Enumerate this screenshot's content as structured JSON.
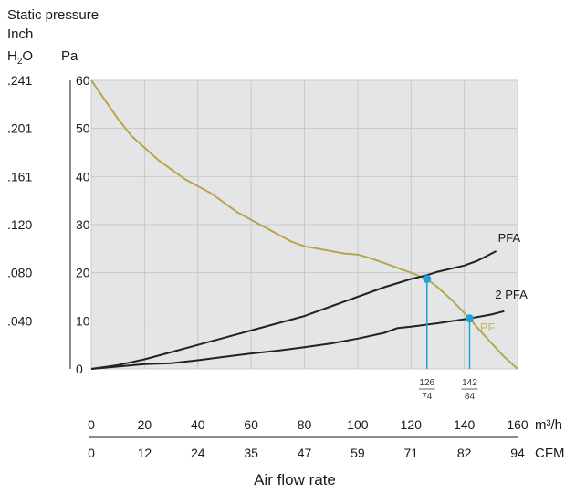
{
  "chart_data": {
    "type": "line",
    "title": "",
    "ylabel_main": "Static pressure",
    "ylabel_unit_inch_top": "Inch",
    "ylabel_unit_inch_bottom": "H",
    "ylabel_unit_inch_sub": "2",
    "ylabel_unit_inch_tail": "O",
    "ylabel_unit_pa": "Pa",
    "xlabel": "Air flow rate",
    "x_unit_primary": "m³/h",
    "x_unit_secondary": "CFM",
    "xlim": [
      0,
      160
    ],
    "ylim": [
      0,
      60
    ],
    "grid": true,
    "y_ticks_pa": [
      "0",
      "10",
      "20",
      "30",
      "40",
      "50",
      "60"
    ],
    "y_ticks_inch": [
      {
        "label": ".040",
        "pa": 10
      },
      {
        "label": ".080",
        "pa": 20
      },
      {
        "label": ".120",
        "pa": 30
      },
      {
        "label": ".161",
        "pa": 40
      },
      {
        "label": ".201",
        "pa": 50
      },
      {
        "label": ".241",
        "pa": 60
      }
    ],
    "x_ticks_m3h": [
      "0",
      "20",
      "40",
      "60",
      "80",
      "100",
      "120",
      "140",
      "160"
    ],
    "x_ticks_cfm": [
      "0",
      "12",
      "24",
      "35",
      "47",
      "59",
      "71",
      "82",
      "94"
    ],
    "series": [
      {
        "name": "PF",
        "color": "#b8a64a",
        "x": [
          0,
          5,
          10,
          15,
          20,
          25,
          30,
          35,
          40,
          45,
          50,
          55,
          60,
          65,
          70,
          75,
          80,
          85,
          90,
          95,
          100,
          105,
          110,
          115,
          120,
          126,
          130,
          135,
          142,
          145,
          150,
          155,
          160
        ],
        "y": [
          60,
          56,
          52,
          48.5,
          46,
          43.5,
          41.5,
          39.5,
          38,
          36.5,
          34.5,
          32.5,
          31,
          29.5,
          28,
          26.5,
          25.5,
          25,
          24.5,
          24,
          23.8,
          23,
          22,
          21,
          20,
          18.7,
          17,
          14.5,
          10.5,
          8.5,
          5.5,
          2.5,
          0
        ]
      },
      {
        "name": "PFA",
        "color": "#222222",
        "x": [
          0,
          10,
          20,
          30,
          40,
          50,
          60,
          70,
          80,
          90,
          100,
          110,
          120,
          126,
          130,
          140,
          145,
          152
        ],
        "y": [
          0,
          0.8,
          2,
          3.5,
          5,
          6.5,
          8,
          9.5,
          11,
          13,
          15,
          17,
          18.7,
          19.5,
          20.2,
          21.5,
          22.5,
          24.5
        ]
      },
      {
        "name": "2 PFA",
        "color": "#222222",
        "x": [
          0,
          10,
          20,
          30,
          40,
          50,
          60,
          70,
          80,
          90,
          100,
          110,
          115,
          120,
          130,
          142,
          150,
          155
        ],
        "y": [
          0,
          0.5,
          1,
          1.2,
          1.8,
          2.5,
          3.2,
          3.8,
          4.5,
          5.3,
          6.3,
          7.5,
          8.5,
          8.8,
          9.5,
          10.5,
          11.3,
          12
        ]
      }
    ],
    "operating_points": [
      {
        "x": 126,
        "y": 18.7,
        "label_top": "126",
        "label_bottom": "74",
        "color": "#1fa3d8"
      },
      {
        "x": 142,
        "y": 10.5,
        "label_top": "142",
        "label_bottom": "84",
        "color": "#1fa3d8"
      }
    ]
  }
}
